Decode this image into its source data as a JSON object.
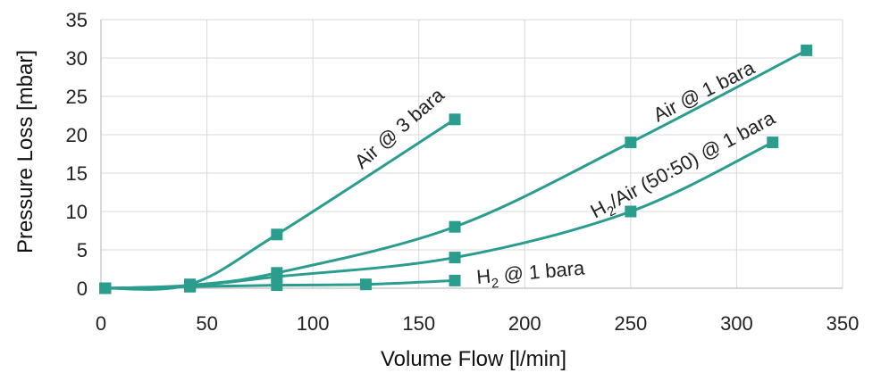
{
  "chart_data": {
    "type": "line",
    "title": "",
    "xlabel": "Volume Flow [l/min]",
    "ylabel": "Pressure Loss [mbar]",
    "xlim": [
      0,
      350
    ],
    "ylim": [
      0,
      35
    ],
    "x_ticks": [
      0,
      50,
      100,
      150,
      200,
      250,
      300,
      350
    ],
    "y_ticks": [
      0,
      5,
      10,
      15,
      20,
      25,
      30,
      35
    ],
    "grid": true,
    "legend": "none (inline series labels)",
    "marker": "square",
    "series_color": "#2a9d8f",
    "series": [
      {
        "name": "Air @ 3 bara",
        "x": [
          2,
          42,
          83,
          167
        ],
        "y": [
          0,
          0.5,
          7,
          22
        ]
      },
      {
        "name": "Air @ 1 bara",
        "x": [
          2,
          42,
          83,
          167,
          250,
          333
        ],
        "y": [
          0,
          0.4,
          2,
          8,
          19,
          31
        ]
      },
      {
        "name": "H2/Air (50:50) @ 1 bara",
        "x": [
          2,
          42,
          83,
          167,
          250,
          317
        ],
        "y": [
          0,
          0.3,
          1.5,
          4,
          10,
          19
        ]
      },
      {
        "name": "H2 @ 1 bara",
        "x": [
          2,
          42,
          83,
          125,
          167
        ],
        "y": [
          0,
          0.2,
          0.4,
          0.5,
          1
        ]
      }
    ]
  }
}
